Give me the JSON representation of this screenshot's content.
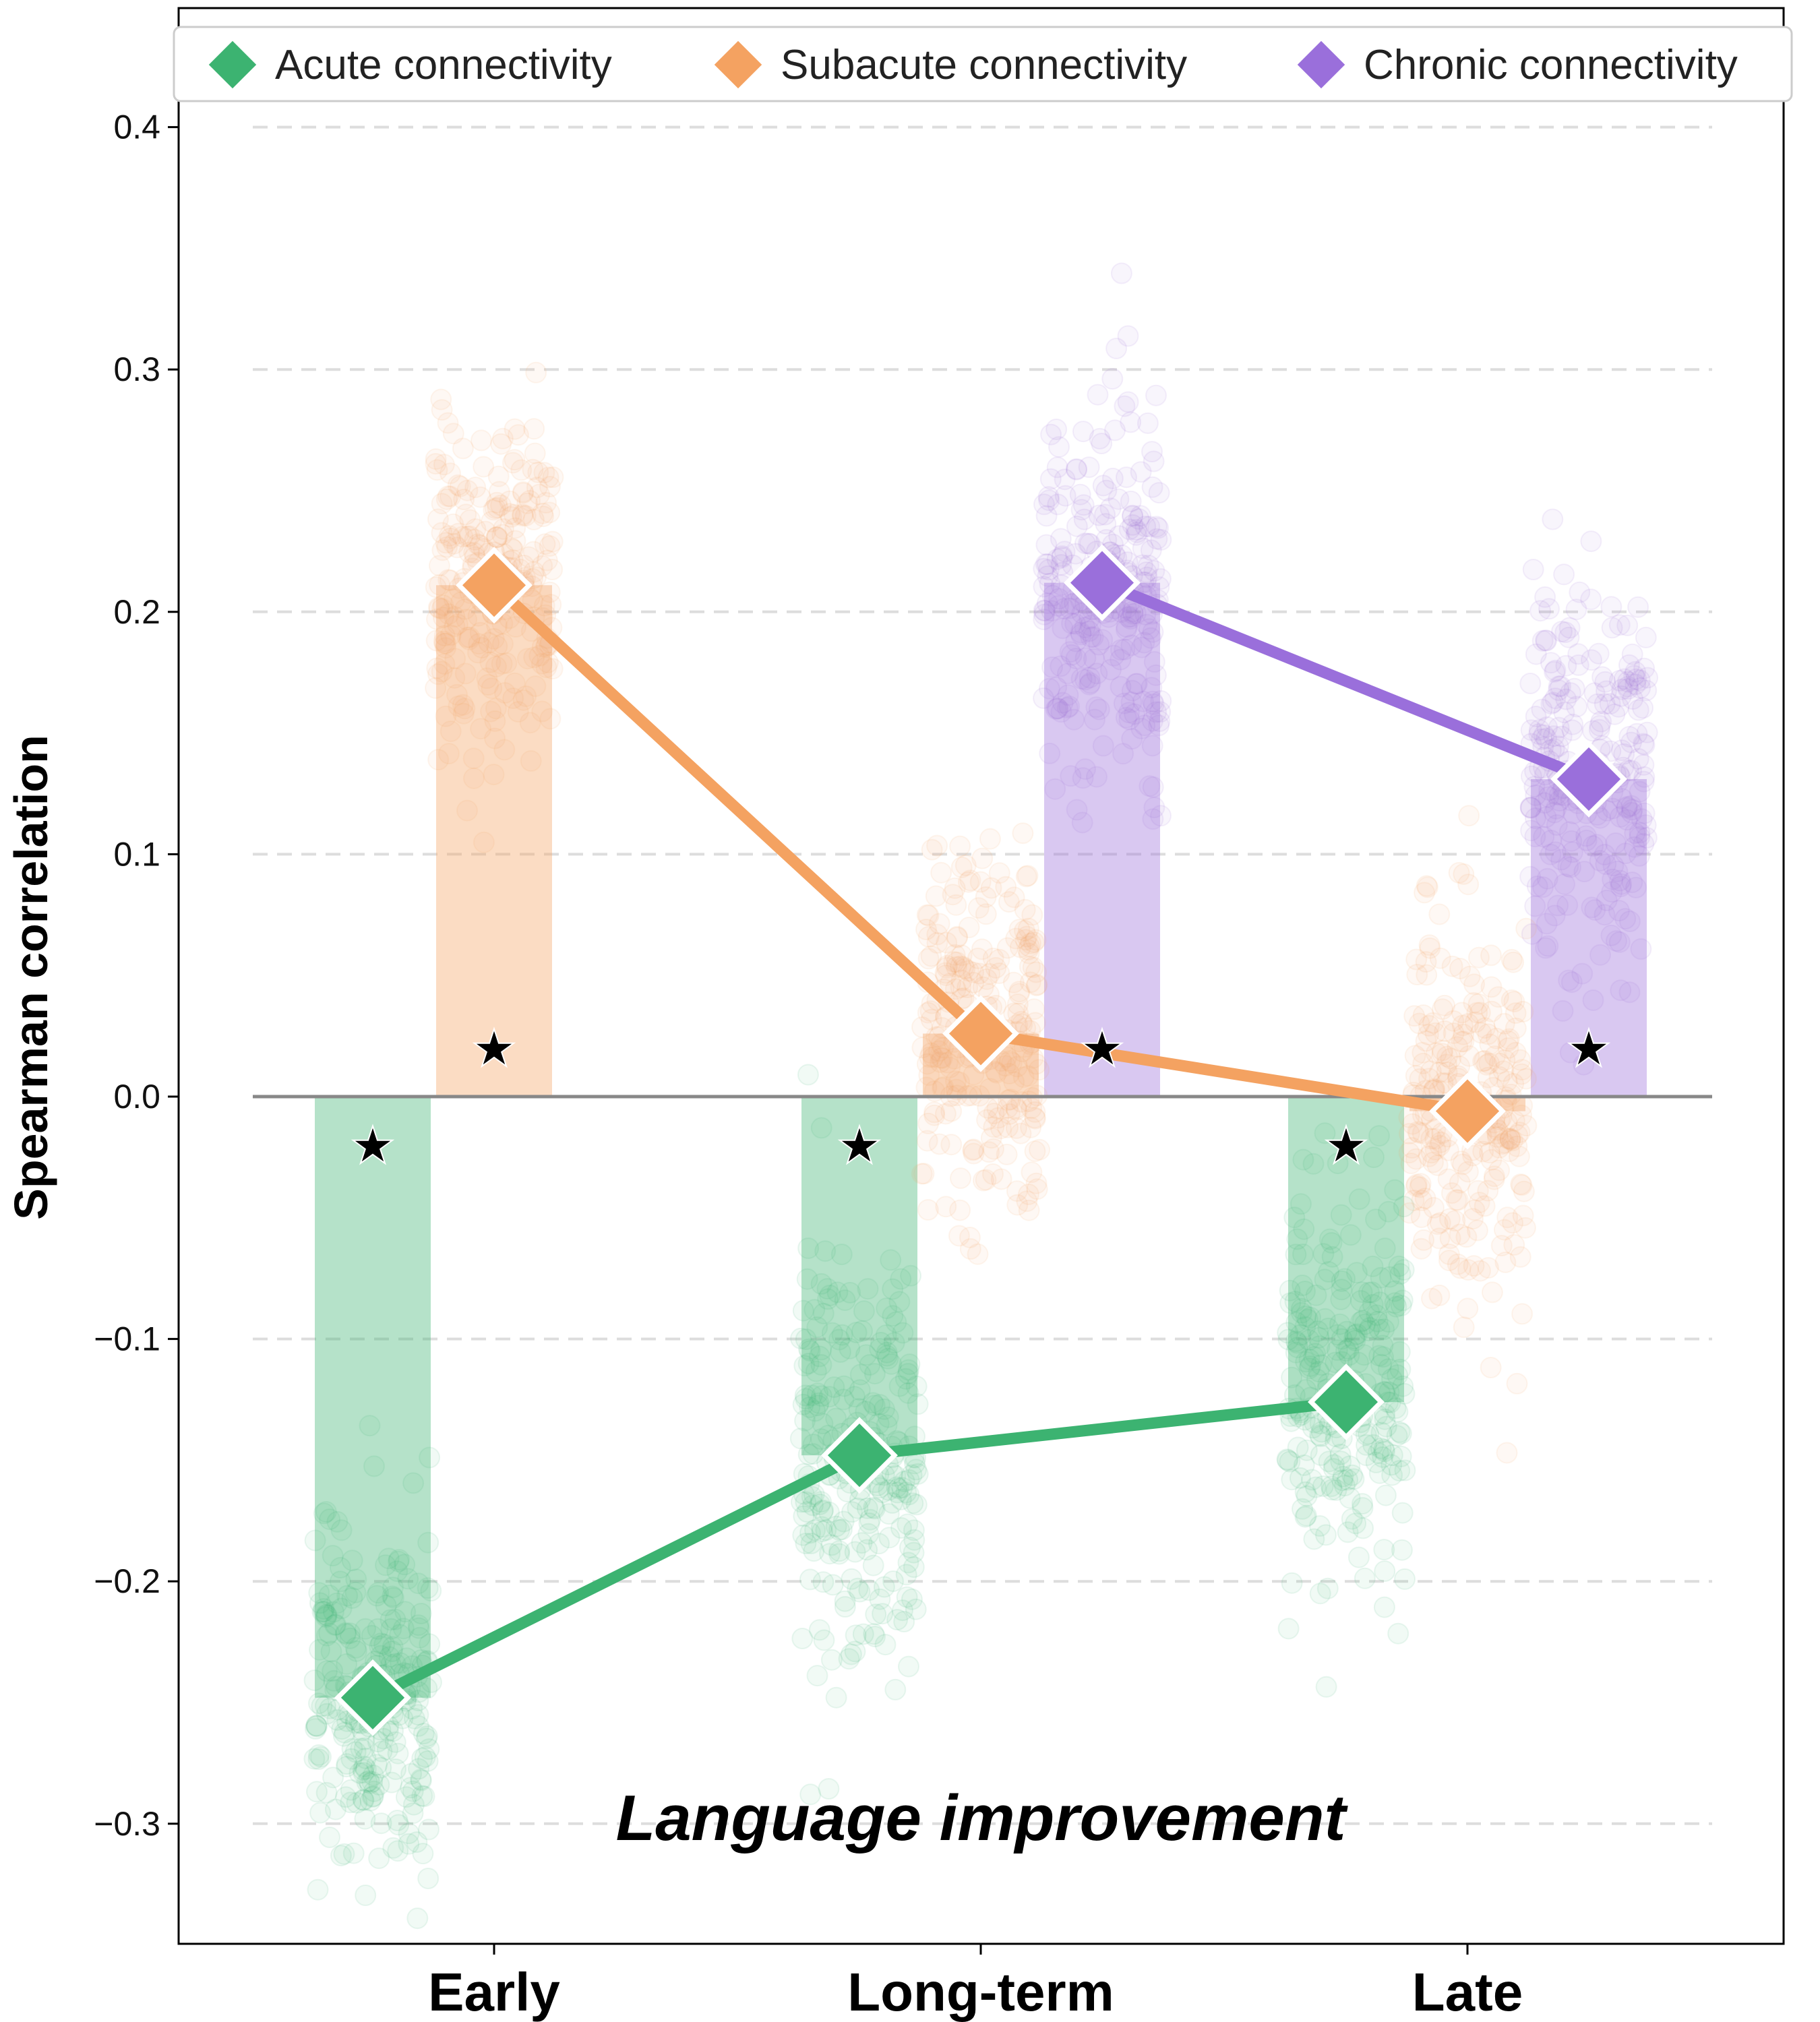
{
  "chart_data": {
    "type": "bar",
    "ylabel": "Spearman correlation",
    "annotation": "Language improvement",
    "categories": [
      "Early",
      "Long-term",
      "Late"
    ],
    "ylim": [
      -0.35,
      0.4
    ],
    "yticks": [
      0.4,
      0.3,
      0.2,
      0.1,
      0.0,
      -0.1,
      -0.2,
      -0.3
    ],
    "ytick_labels": [
      "0.4",
      "0.3",
      "0.2",
      "0.1",
      "0.0",
      "−0.1",
      "−0.2",
      "−0.3"
    ],
    "grid": "horizontal dashed",
    "legend_position": "top",
    "series": [
      {
        "name": "Acute connectivity",
        "color": "#3cb371",
        "values": [
          -0.248,
          -0.148,
          -0.126
        ],
        "spread": [
          0.05,
          0.055,
          0.055
        ],
        "significant": [
          true,
          true,
          true
        ]
      },
      {
        "name": "Subacute connectivity",
        "color": "#f4a261",
        "values": [
          0.211,
          0.026,
          -0.006
        ],
        "spread": [
          0.05,
          0.05,
          0.05
        ],
        "significant": [
          true,
          false,
          false
        ]
      },
      {
        "name": "Chronic connectivity",
        "color": "#9a6fdb",
        "values": [
          null,
          0.212,
          0.131
        ],
        "spread": [
          0,
          0.05,
          0.05
        ],
        "significant": [
          false,
          true,
          true
        ]
      }
    ],
    "star_symbol": "★"
  }
}
